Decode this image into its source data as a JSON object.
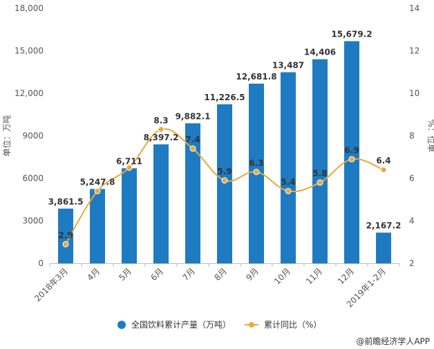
{
  "chart_data": {
    "type": "bar",
    "categories": [
      "2018年3月",
      "4月",
      "5月",
      "6月",
      "7月",
      "8月",
      "9月",
      "10月",
      "11月",
      "12月",
      "2019年1-2月"
    ],
    "series": [
      {
        "name": "全国饮料累计产量（万吨）",
        "type": "bar",
        "axis": "left",
        "values": [
          3861.5,
          5247.8,
          6711,
          8397.2,
          9882.1,
          11226.5,
          12681.8,
          13487,
          14406,
          15679.2,
          2167.2
        ],
        "labels": [
          "3,861.5",
          "5,247.8",
          "6,711",
          "8,397.2",
          "9,882.1",
          "11,226.5",
          "12,681.8",
          "13,487",
          "14,406",
          "15,679.2",
          "2,167.2"
        ],
        "color": "#1f7bc1"
      },
      {
        "name": "累计同比（%）",
        "type": "line",
        "axis": "right",
        "values": [
          2.9,
          5.4,
          6.5,
          8.3,
          7.4,
          5.9,
          6.3,
          5.4,
          5.8,
          6.9,
          6.4
        ],
        "labels": [
          "2.9",
          "",
          "",
          "8.3",
          "7.4",
          "5.9",
          "6.3",
          "5.4",
          "5.8",
          "6.9",
          "6.4"
        ],
        "color": "#e8a93a"
      }
    ],
    "y_left": {
      "label": "单位：万吨",
      "ylim": [
        0,
        18000
      ],
      "ticks": [
        0,
        3000,
        6000,
        9000,
        12000,
        15000,
        18000
      ],
      "tick_labels": [
        "0",
        "3000",
        "6000",
        "9000",
        "12,000",
        "15,000",
        "18,000"
      ]
    },
    "y_right": {
      "label": "%：位单",
      "ylim": [
        2,
        14
      ],
      "ticks": [
        2,
        4,
        6,
        8,
        10,
        12,
        14
      ],
      "tick_labels": [
        "2",
        "4",
        "6",
        "8",
        "10",
        "12",
        "14"
      ]
    },
    "legend": {
      "position": "bottom"
    },
    "grid": false
  },
  "source": "@前瞻经济学人APP",
  "colors": {
    "bar": "#1f7bc1",
    "line": "#e8a93a",
    "axis": "#bbbbbb"
  }
}
